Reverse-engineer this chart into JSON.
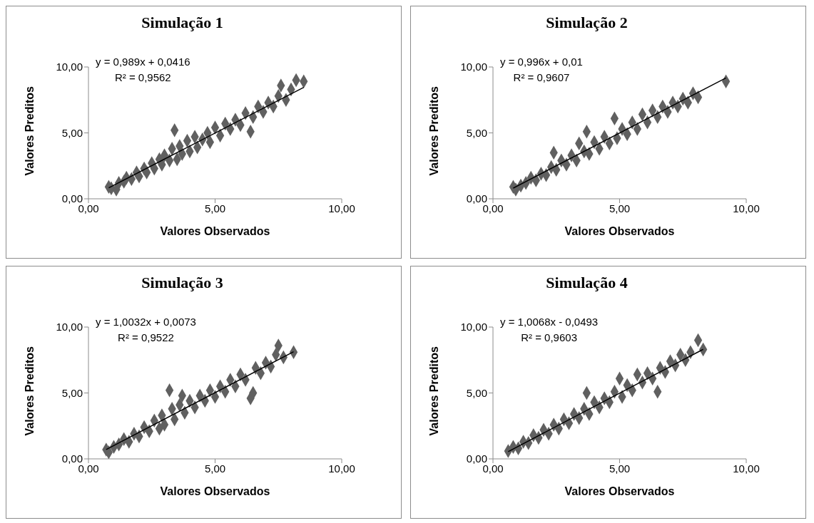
{
  "chart_data": [
    {
      "type": "scatter",
      "title": "Simulação 1",
      "xlabel": "Valores Observados",
      "ylabel": "Valores Preditos",
      "xlim": [
        0,
        10
      ],
      "ylim": [
        0,
        10
      ],
      "xticks": [
        {
          "value": 0,
          "label": "0,00"
        },
        {
          "value": 5,
          "label": "5,00"
        },
        {
          "value": 10,
          "label": "10,00"
        }
      ],
      "yticks": [
        {
          "value": 0,
          "label": "0,00"
        },
        {
          "value": 5,
          "label": "5,00"
        },
        {
          "value": 10,
          "label": "10,00"
        }
      ],
      "annotations": [
        "y = 0,989x + 0,0416",
        "R² = 0,9562"
      ],
      "series": [
        {
          "marker": "diamond",
          "color": "#606060",
          "x": [
            0.8,
            0.9,
            1.1,
            1.2,
            1.4,
            1.5,
            1.7,
            1.9,
            2.0,
            2.2,
            2.3,
            2.5,
            2.6,
            2.8,
            2.9,
            3.0,
            3.2,
            3.3,
            3.4,
            3.5,
            3.6,
            3.7,
            3.9,
            4.0,
            4.2,
            4.3,
            4.5,
            4.7,
            4.8,
            5.0,
            5.2,
            5.4,
            5.6,
            5.8,
            6.0,
            6.2,
            6.4,
            6.5,
            6.7,
            6.9,
            7.1,
            7.3,
            7.5,
            7.6,
            7.8,
            8.0,
            8.2,
            8.5
          ],
          "values": [
            0.9,
            0.8,
            0.7,
            1.2,
            1.3,
            1.6,
            1.5,
            2.0,
            1.7,
            2.3,
            2.0,
            2.7,
            2.3,
            3.0,
            2.6,
            3.3,
            2.9,
            3.8,
            5.2,
            3.0,
            4.0,
            3.4,
            4.4,
            3.6,
            4.7,
            3.9,
            4.5,
            5.0,
            4.3,
            5.4,
            4.8,
            5.7,
            5.3,
            6.0,
            5.6,
            6.5,
            5.1,
            6.2,
            7.0,
            6.6,
            7.3,
            7.0,
            7.8,
            8.6,
            7.5,
            8.3,
            9.0,
            8.9
          ]
        },
        {
          "type": "line",
          "marker": "none",
          "color": "#000000",
          "x": [
            0.8,
            8.5
          ],
          "values": [
            0.83,
            8.45
          ]
        }
      ]
    },
    {
      "type": "scatter",
      "title": "Simulação 2",
      "xlabel": "Valores Observados",
      "ylabel": "Valores Preditos",
      "xlim": [
        0,
        10
      ],
      "ylim": [
        0,
        10
      ],
      "xticks": [
        {
          "value": 0,
          "label": "0,00"
        },
        {
          "value": 5,
          "label": "5,00"
        },
        {
          "value": 10,
          "label": "10,00"
        }
      ],
      "yticks": [
        {
          "value": 0,
          "label": "0,00"
        },
        {
          "value": 5,
          "label": "5,00"
        },
        {
          "value": 10,
          "label": "10,00"
        }
      ],
      "annotations": [
        "y = 0,996x + 0,01",
        "R² = 0,9607"
      ],
      "series": [
        {
          "marker": "diamond",
          "color": "#606060",
          "x": [
            0.8,
            0.9,
            1.1,
            1.3,
            1.5,
            1.7,
            1.9,
            2.1,
            2.3,
            2.4,
            2.5,
            2.7,
            2.9,
            3.1,
            3.3,
            3.4,
            3.6,
            3.7,
            3.8,
            4.0,
            4.2,
            4.4,
            4.6,
            4.8,
            4.9,
            5.1,
            5.3,
            5.5,
            5.7,
            5.9,
            6.1,
            6.3,
            6.5,
            6.7,
            6.9,
            7.1,
            7.3,
            7.5,
            7.7,
            7.9,
            8.1,
            9.2
          ],
          "values": [
            0.9,
            0.7,
            1.0,
            1.2,
            1.6,
            1.4,
            1.9,
            1.8,
            2.4,
            3.5,
            2.2,
            2.9,
            2.6,
            3.3,
            2.9,
            4.2,
            3.6,
            5.1,
            3.4,
            4.3,
            3.8,
            4.7,
            4.2,
            6.1,
            4.6,
            5.3,
            4.9,
            5.8,
            5.3,
            6.4,
            5.8,
            6.7,
            6.2,
            7.0,
            6.6,
            7.3,
            7.0,
            7.6,
            7.3,
            8.0,
            7.7,
            8.9
          ]
        },
        {
          "type": "line",
          "marker": "none",
          "color": "#000000",
          "x": [
            0.8,
            9.2
          ],
          "values": [
            0.81,
            9.17
          ]
        }
      ]
    },
    {
      "type": "scatter",
      "title": "Simulação 3",
      "xlabel": "Valores Observados",
      "ylabel": "Valores Preditos",
      "xlim": [
        0,
        10
      ],
      "ylim": [
        0,
        10
      ],
      "xticks": [
        {
          "value": 0,
          "label": "0,00"
        },
        {
          "value": 5,
          "label": "5,00"
        },
        {
          "value": 10,
          "label": "10,00"
        }
      ],
      "yticks": [
        {
          "value": 0,
          "label": "0,00"
        },
        {
          "value": 5,
          "label": "5,00"
        },
        {
          "value": 10,
          "label": "10,00"
        }
      ],
      "annotations": [
        "y = 1,0032x + 0,0073",
        "R² = 0,9522"
      ],
      "series": [
        {
          "marker": "diamond",
          "color": "#606060",
          "x": [
            0.7,
            0.8,
            1.0,
            1.2,
            1.4,
            1.6,
            1.8,
            2.0,
            2.2,
            2.4,
            2.6,
            2.8,
            2.9,
            3.0,
            3.2,
            3.3,
            3.4,
            3.6,
            3.7,
            3.8,
            4.0,
            4.2,
            4.4,
            4.6,
            4.8,
            5.0,
            5.2,
            5.4,
            5.6,
            5.8,
            6.0,
            6.2,
            6.4,
            6.5,
            6.6,
            6.8,
            7.0,
            7.2,
            7.4,
            7.5,
            7.7,
            8.1
          ],
          "values": [
            0.7,
            0.5,
            0.9,
            1.1,
            1.5,
            1.3,
            1.9,
            1.7,
            2.4,
            2.1,
            2.9,
            2.3,
            3.3,
            2.6,
            5.2,
            3.8,
            3.0,
            4.1,
            4.8,
            3.5,
            4.4,
            3.9,
            4.8,
            4.4,
            5.2,
            4.7,
            5.5,
            5.1,
            6.0,
            5.5,
            6.4,
            6.0,
            4.6,
            5.0,
            6.9,
            6.5,
            7.3,
            7.0,
            7.9,
            8.6,
            7.7,
            8.1
          ]
        },
        {
          "type": "line",
          "marker": "none",
          "color": "#000000",
          "x": [
            0.7,
            8.1
          ],
          "values": [
            0.71,
            8.13
          ]
        }
      ]
    },
    {
      "type": "scatter",
      "title": "Simulação 4",
      "xlabel": "Valores Observados",
      "ylabel": "Valores Preditos",
      "xlim": [
        0,
        10
      ],
      "ylim": [
        0,
        10
      ],
      "xticks": [
        {
          "value": 0,
          "label": "0,00"
        },
        {
          "value": 5,
          "label": "5,00"
        },
        {
          "value": 10,
          "label": "10,00"
        }
      ],
      "yticks": [
        {
          "value": 0,
          "label": "0,00"
        },
        {
          "value": 5,
          "label": "5,00"
        },
        {
          "value": 10,
          "label": "10,00"
        }
      ],
      "annotations": [
        "y = 1,0068x - 0,0493",
        "R² = 0,9603"
      ],
      "series": [
        {
          "marker": "diamond",
          "color": "#606060",
          "x": [
            0.6,
            0.8,
            1.0,
            1.2,
            1.4,
            1.6,
            1.8,
            2.0,
            2.2,
            2.4,
            2.6,
            2.8,
            3.0,
            3.2,
            3.4,
            3.6,
            3.7,
            3.8,
            4.0,
            4.2,
            4.4,
            4.6,
            4.8,
            5.0,
            5.1,
            5.3,
            5.5,
            5.7,
            5.9,
            6.1,
            6.3,
            6.5,
            6.6,
            6.8,
            7.0,
            7.2,
            7.4,
            7.6,
            7.8,
            8.1,
            8.3
          ],
          "values": [
            0.6,
            0.9,
            0.8,
            1.3,
            1.2,
            1.8,
            1.6,
            2.2,
            1.9,
            2.6,
            2.3,
            3.0,
            2.7,
            3.4,
            3.1,
            3.8,
            5.0,
            3.4,
            4.3,
            3.9,
            4.6,
            4.3,
            5.1,
            6.1,
            4.7,
            5.6,
            5.2,
            6.4,
            5.8,
            6.5,
            6.1,
            5.1,
            6.9,
            6.6,
            7.4,
            7.1,
            7.9,
            7.5,
            8.1,
            9.0,
            8.3
          ]
        },
        {
          "type": "line",
          "marker": "none",
          "color": "#000000",
          "x": [
            0.6,
            8.3
          ],
          "values": [
            0.55,
            8.31
          ]
        }
      ]
    }
  ]
}
